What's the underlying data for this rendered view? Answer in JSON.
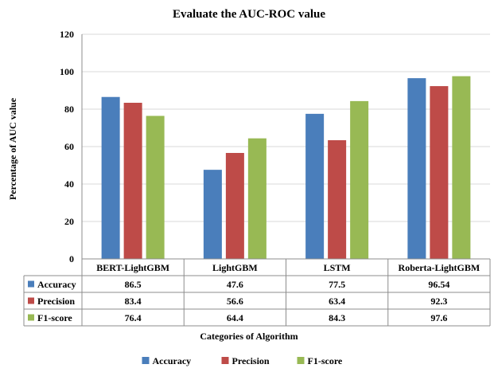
{
  "chart_data": {
    "type": "bar",
    "title": "Evaluate the AUC-ROC value",
    "xlabel": "Categories of Algorithm",
    "ylabel": "Percentage of AUC value",
    "ylim": [
      0,
      120
    ],
    "yticks": [
      0,
      20,
      40,
      60,
      80,
      100,
      120
    ],
    "grid": true,
    "legend_position": "bottom",
    "categories": [
      "BERT-LightGBM",
      "LightGBM",
      "LSTM",
      "Roberta-LightGBM"
    ],
    "series": [
      {
        "name": "Accuracy",
        "color": "#4a7ebb",
        "values": [
          86.5,
          47.6,
          77.5,
          96.54
        ],
        "labels": [
          "86.5",
          "47.6",
          "77.5",
          "96.54"
        ]
      },
      {
        "name": "Precision",
        "color": "#be4b48",
        "values": [
          83.4,
          56.6,
          63.4,
          92.3
        ],
        "labels": [
          "83.4",
          "56.6",
          "63.4",
          "92.3"
        ]
      },
      {
        "name": "F1-score",
        "color": "#98b954",
        "values": [
          76.4,
          64.4,
          84.3,
          97.6
        ],
        "labels": [
          "76.4",
          "64.4",
          "84.3",
          "97.6"
        ]
      }
    ]
  }
}
